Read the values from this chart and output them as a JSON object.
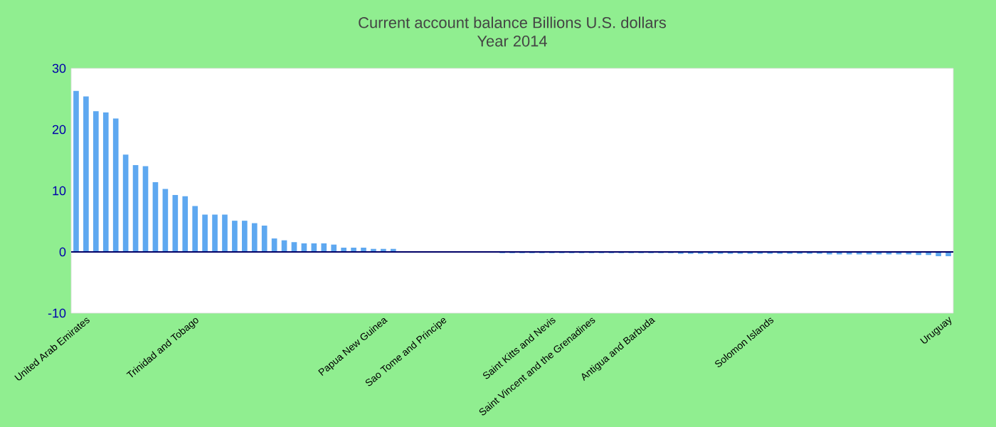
{
  "chart_data": {
    "type": "bar",
    "title": "Current account balance Billions U.S. dollars",
    "subtitle": "Year 2014",
    "categories": [
      null,
      "United Arab Emirates",
      null,
      null,
      null,
      null,
      null,
      null,
      null,
      null,
      null,
      null,
      "Trinidad and Tobago",
      null,
      null,
      null,
      null,
      null,
      null,
      null,
      null,
      null,
      null,
      null,
      null,
      null,
      null,
      null,
      null,
      null,
      null,
      "Papua New Guinea",
      null,
      null,
      null,
      null,
      null,
      "Sao Tome and Principe",
      null,
      null,
      null,
      null,
      null,
      null,
      null,
      null,
      null,
      null,
      "Saint Kitts and Nevis",
      null,
      null,
      null,
      "Saint Vincent and the Grenadines",
      null,
      null,
      null,
      null,
      null,
      "Antigua and Barbuda",
      null,
      null,
      null,
      null,
      null,
      null,
      null,
      null,
      null,
      null,
      null,
      "Solomon Islands",
      null,
      null,
      null,
      null,
      null,
      null,
      null,
      null,
      null,
      null,
      null,
      null,
      null,
      null,
      null,
      null,
      null,
      "Uruguay"
    ],
    "values": [
      26.3,
      25.4,
      23.0,
      22.8,
      21.8,
      15.9,
      14.2,
      14.0,
      11.4,
      10.3,
      9.3,
      9.1,
      7.5,
      6.1,
      6.1,
      6.1,
      5.1,
      5.1,
      4.7,
      4.3,
      2.2,
      1.9,
      1.6,
      1.4,
      1.4,
      1.4,
      1.2,
      0.7,
      0.7,
      0.7,
      0.5,
      0.5,
      0.5,
      0,
      0,
      0,
      0,
      0,
      0,
      0,
      0,
      0,
      0,
      -0.2,
      -0.2,
      -0.2,
      -0.2,
      -0.2,
      -0.2,
      -0.2,
      -0.2,
      -0.2,
      -0.2,
      -0.2,
      -0.2,
      -0.2,
      -0.2,
      -0.2,
      -0.2,
      -0.2,
      -0.2,
      -0.3,
      -0.3,
      -0.3,
      -0.3,
      -0.3,
      -0.3,
      -0.3,
      -0.3,
      -0.3,
      -0.3,
      -0.3,
      -0.3,
      -0.3,
      -0.3,
      -0.3,
      -0.4,
      -0.4,
      -0.4,
      -0.4,
      -0.4,
      -0.4,
      -0.4,
      -0.4,
      -0.4,
      -0.5,
      -0.5,
      -0.7,
      -0.7
    ],
    "color": "#5ea8f0",
    "ref_lines": [
      {
        "axis": "y",
        "value": 0,
        "color": "#000066"
      }
    ],
    "ylim": [
      -10,
      30
    ],
    "yticks": [
      -10,
      0,
      10,
      20,
      30
    ]
  }
}
